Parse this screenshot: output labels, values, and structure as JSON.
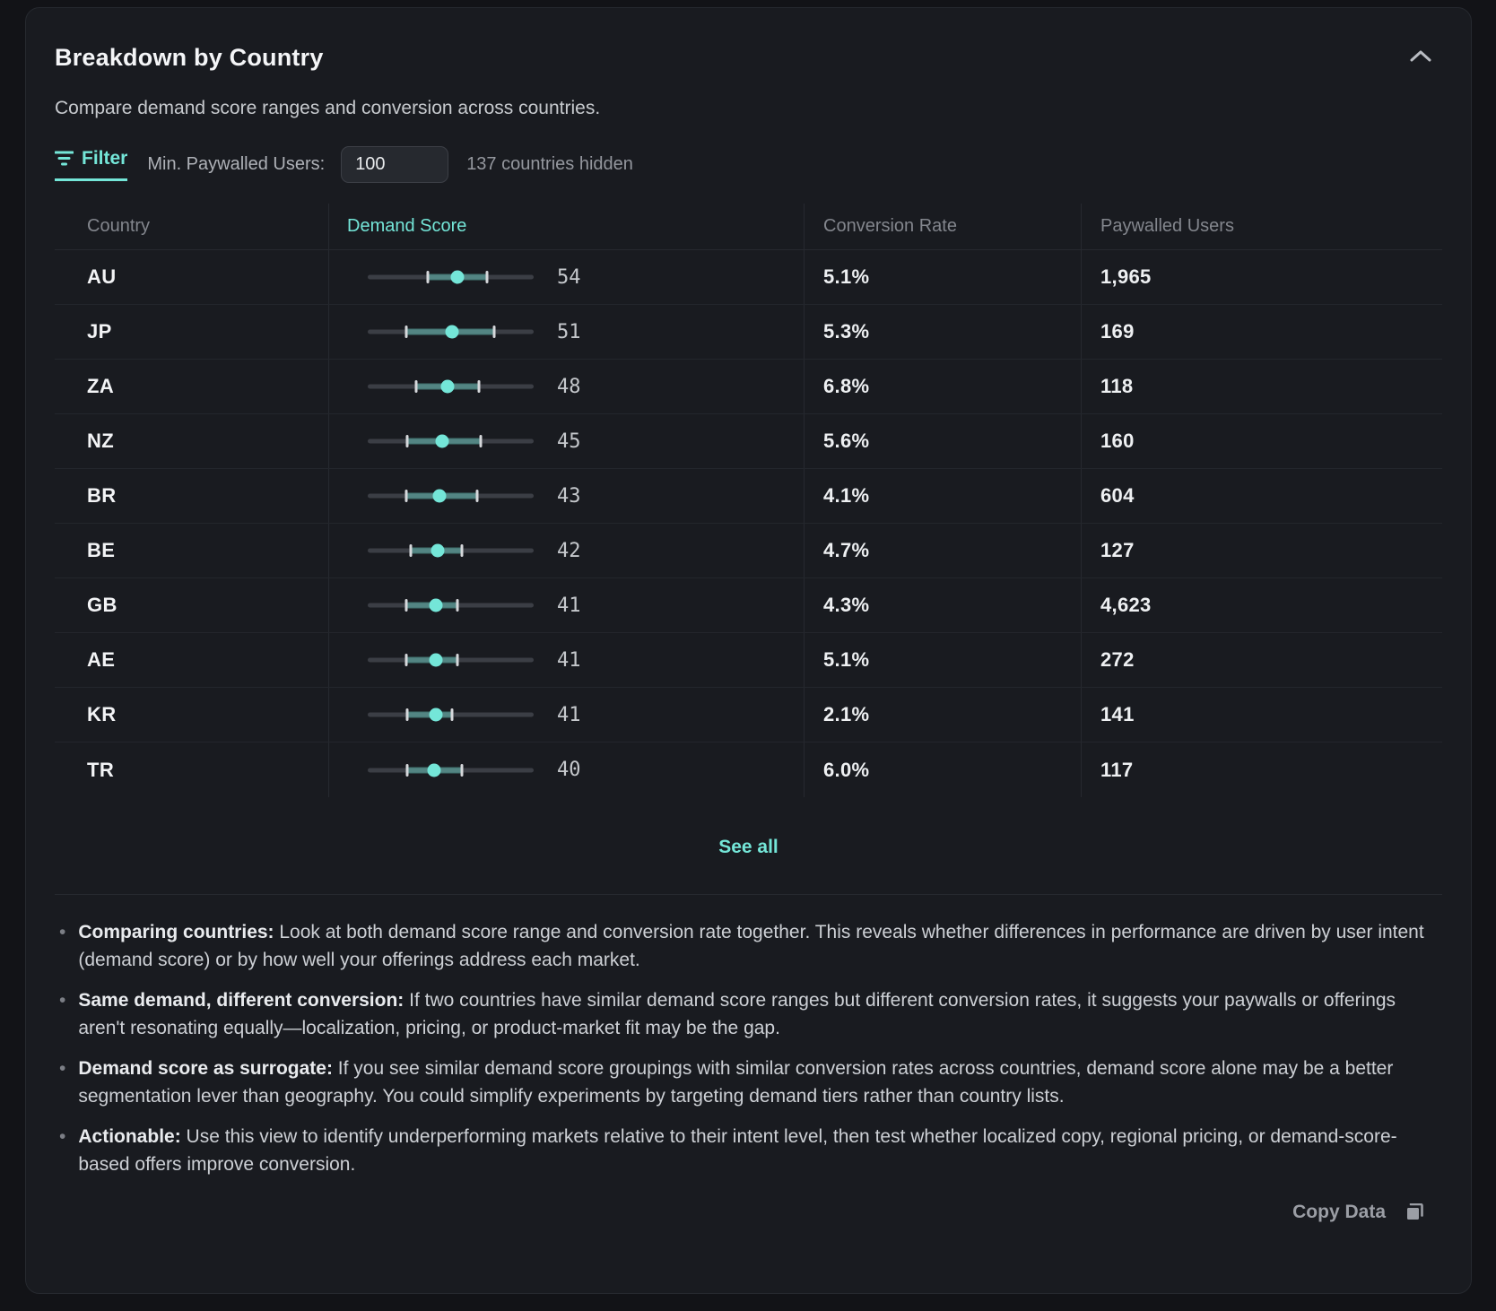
{
  "card": {
    "title": "Breakdown by Country",
    "subtitle": "Compare demand score ranges and conversion across countries."
  },
  "filter": {
    "label": "Filter",
    "min_paywalled_label": "Min. Paywalled Users:",
    "input_value": "100",
    "hidden_note": "137 countries hidden"
  },
  "table": {
    "columns": [
      "Country",
      "Demand Score",
      "Conversion Rate",
      "Paywalled Users"
    ],
    "rows": [
      {
        "country": "AU",
        "score": 54,
        "range_low": 36,
        "range_high": 72,
        "conversion": "5.1%",
        "paywalled": "1,965"
      },
      {
        "country": "JP",
        "score": 51,
        "range_low": 23,
        "range_high": 76,
        "conversion": "5.3%",
        "paywalled": "169"
      },
      {
        "country": "ZA",
        "score": 48,
        "range_low": 29,
        "range_high": 67,
        "conversion": "6.8%",
        "paywalled": "118"
      },
      {
        "country": "NZ",
        "score": 45,
        "range_low": 24,
        "range_high": 68,
        "conversion": "5.6%",
        "paywalled": "160"
      },
      {
        "country": "BR",
        "score": 43,
        "range_low": 23,
        "range_high": 66,
        "conversion": "4.1%",
        "paywalled": "604"
      },
      {
        "country": "BE",
        "score": 42,
        "range_low": 26,
        "range_high": 57,
        "conversion": "4.7%",
        "paywalled": "127"
      },
      {
        "country": "GB",
        "score": 41,
        "range_low": 23,
        "range_high": 54,
        "conversion": "4.3%",
        "paywalled": "4,623"
      },
      {
        "country": "AE",
        "score": 41,
        "range_low": 23,
        "range_high": 54,
        "conversion": "5.1%",
        "paywalled": "272"
      },
      {
        "country": "KR",
        "score": 41,
        "range_low": 24,
        "range_high": 51,
        "conversion": "2.1%",
        "paywalled": "141"
      },
      {
        "country": "TR",
        "score": 40,
        "range_low": 24,
        "range_high": 57,
        "conversion": "6.0%",
        "paywalled": "117"
      }
    ]
  },
  "see_all_label": "See all",
  "insights": [
    {
      "lead": "Comparing countries:",
      "text": " Look at both demand score range and conversion rate together. This reveals whether differences in performance are driven by user intent (demand score) or by how well your offerings address each market."
    },
    {
      "lead": "Same demand, different conversion:",
      "text": " If two countries have similar demand score ranges but different conversion rates, it suggests your paywalls or offerings aren't resonating equally—localization, pricing, or product-market fit may be the gap."
    },
    {
      "lead": "Demand score as surrogate:",
      "text": " If you see similar demand score groupings with similar conversion rates across countries, demand score alone may be a better segmentation lever than geography. You could simplify experiments by targeting demand tiers rather than country lists."
    },
    {
      "lead": "Actionable:",
      "text": " Use this view to identify underperforming markets relative to their intent level, then test whether localized copy, regional pricing, or demand-score-based offers improve conversion."
    }
  ],
  "footer": {
    "copy_label": "Copy Data"
  },
  "colors": {
    "accent": "#74e6d8",
    "card_bg": "#191b20",
    "page_bg": "#121317",
    "range_fill": "rgba(116,230,216,0.42)"
  },
  "icons": [
    "filter-icon",
    "chevron-up-icon",
    "copy-icon"
  ]
}
